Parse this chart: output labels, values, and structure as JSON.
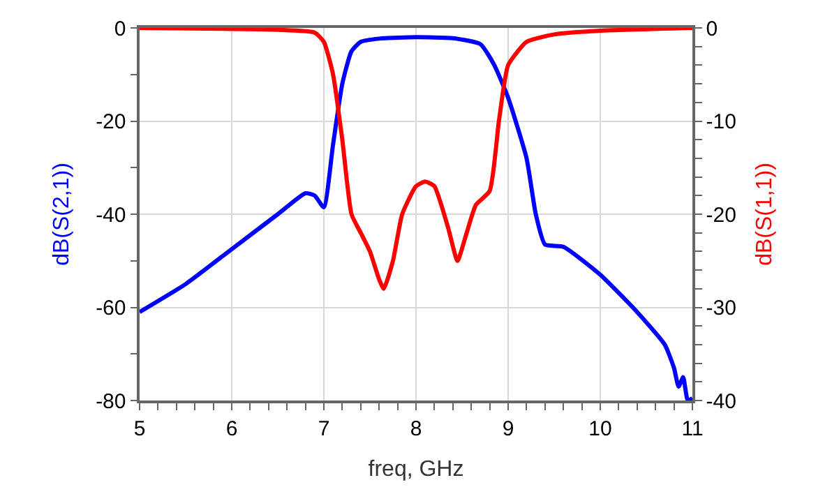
{
  "chart_data": {
    "type": "line",
    "xlabel": "freq, GHz",
    "ylabel": "dB(S(2,1))",
    "y2label": "dB(S(1,1))",
    "xlim": [
      5,
      11
    ],
    "xticks": [
      5,
      6,
      7,
      8,
      9,
      10,
      11
    ],
    "ylim": [
      -80,
      0
    ],
    "yticks": [
      -80,
      -60,
      -40,
      -20,
      0
    ],
    "y2lim": [
      -40,
      0
    ],
    "y2ticks": [
      -40,
      -30,
      -20,
      -10,
      0
    ],
    "grid": true,
    "marker": "none",
    "line_style": "solid",
    "series": [
      {
        "color": "#0000ff",
        "x": [
          5,
          5.5,
          6,
          6.5,
          6.8,
          6.9,
          7.0,
          7.1,
          7.2,
          7.3,
          7.4,
          7.6,
          8,
          8.4,
          8.7,
          8.85,
          9.0,
          9.2,
          9.3,
          9.4,
          9.6,
          10,
          10.4,
          10.7,
          10.8,
          10.85,
          10.9,
          10.95,
          11
        ],
        "values": [
          -61,
          -55,
          -47.5,
          -40,
          -35.5,
          -36,
          -38.5,
          -25,
          -12,
          -5,
          -3,
          -2.3,
          -2,
          -2.2,
          -3.5,
          -8,
          -15,
          -28,
          -40,
          -46.5,
          -47,
          -53,
          -61,
          -68,
          -73,
          -77,
          -75,
          -80,
          -79.5
        ]
      },
      {
        "color": "#ff0000",
        "axis": "y2",
        "x": [
          5,
          6.5,
          6.9,
          7.0,
          7.1,
          7.2,
          7.3,
          7.4,
          7.5,
          7.6,
          7.65,
          7.75,
          7.85,
          8.0,
          8.1,
          8.2,
          8.35,
          8.45,
          8.55,
          8.65,
          8.8,
          8.9,
          9.0,
          9.2,
          9.5,
          10,
          11
        ],
        "values": [
          0,
          -0.2,
          -0.5,
          -1.5,
          -5,
          -12,
          -20,
          -22,
          -24,
          -27,
          -28,
          -25,
          -20,
          -17,
          -16.5,
          -17,
          -21.5,
          -25,
          -22,
          -19,
          -17.5,
          -10,
          -4,
          -1.5,
          -0.7,
          -0.3,
          0
        ]
      }
    ]
  }
}
